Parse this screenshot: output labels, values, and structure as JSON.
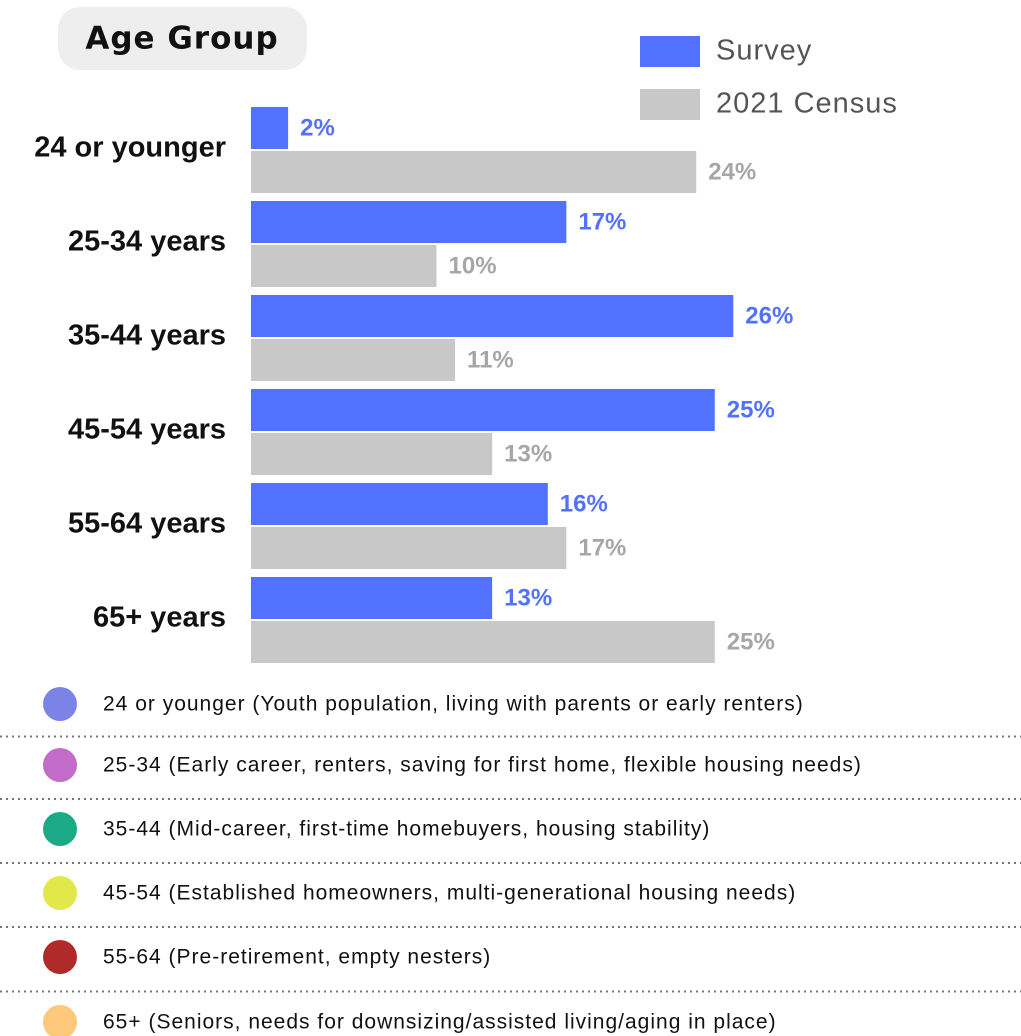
{
  "chart_data": {
    "type": "bar",
    "orientation": "horizontal",
    "title": "Age Group",
    "categories": [
      "24 or younger",
      "25-34 years",
      "35-44 years",
      "45-54 years",
      "55-64 years",
      "65+ years"
    ],
    "series": [
      {
        "name": "Survey",
        "color": "#5271ff",
        "label_color": "#5271ff",
        "values": [
          2,
          17,
          26,
          25,
          16,
          13
        ],
        "value_labels": [
          "2%",
          "17%",
          "26%",
          "25%",
          "16%",
          "13%"
        ]
      },
      {
        "name": "2021 Census",
        "color": "#c8c8c8",
        "label_color": "#a6a6a6",
        "values": [
          24,
          10,
          11,
          13,
          17,
          25
        ],
        "value_labels": [
          "24%",
          "10%",
          "11%",
          "13%",
          "17%",
          "25%"
        ]
      }
    ]
  },
  "notes": [
    {
      "label": "24 or younger (Youth population, living with parents or early renters)",
      "color": "#7b84e6"
    },
    {
      "label": "25-34 (Early career, renters, saving for first home, flexible housing needs)",
      "color": "#c06cc8"
    },
    {
      "label": "35-44 (Mid-career, first-time homebuyers, housing stability)",
      "color": "#1aaa88"
    },
    {
      "label": "45-54 (Established homeowners, multi-generational housing needs)",
      "color": "#e0e84a"
    },
    {
      "label": "55-64 (Pre-retirement, empty nesters)",
      "color": "#b02a2a"
    },
    {
      "label": "65+ (Seniors, needs for downsizing/assisted living/aging in place)",
      "color": "#fdc87a"
    }
  ]
}
